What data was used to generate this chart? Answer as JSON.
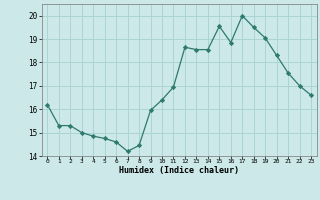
{
  "x": [
    0,
    1,
    2,
    3,
    4,
    5,
    6,
    7,
    8,
    9,
    10,
    11,
    12,
    13,
    14,
    15,
    16,
    17,
    18,
    19,
    20,
    21,
    22,
    23
  ],
  "y": [
    16.2,
    15.3,
    15.3,
    15.0,
    14.85,
    14.75,
    14.6,
    14.2,
    14.45,
    15.95,
    16.4,
    16.95,
    18.65,
    18.55,
    18.55,
    19.55,
    18.85,
    20.0,
    19.5,
    19.05,
    18.3,
    17.55,
    17.0,
    16.6
  ],
  "line_color": "#2d7a6e",
  "marker": "D",
  "marker_size": 2.2,
  "bg_color": "#cce8e8",
  "grid_color": "#aad4d4",
  "xlabel": "Humidex (Indice chaleur)",
  "ylim": [
    14,
    20.5
  ],
  "xlim": [
    -0.5,
    23.5
  ],
  "yticks": [
    14,
    15,
    16,
    17,
    18,
    19,
    20
  ],
  "xticks": [
    0,
    1,
    2,
    3,
    4,
    5,
    6,
    7,
    8,
    9,
    10,
    11,
    12,
    13,
    14,
    15,
    16,
    17,
    18,
    19,
    20,
    21,
    22,
    23
  ]
}
